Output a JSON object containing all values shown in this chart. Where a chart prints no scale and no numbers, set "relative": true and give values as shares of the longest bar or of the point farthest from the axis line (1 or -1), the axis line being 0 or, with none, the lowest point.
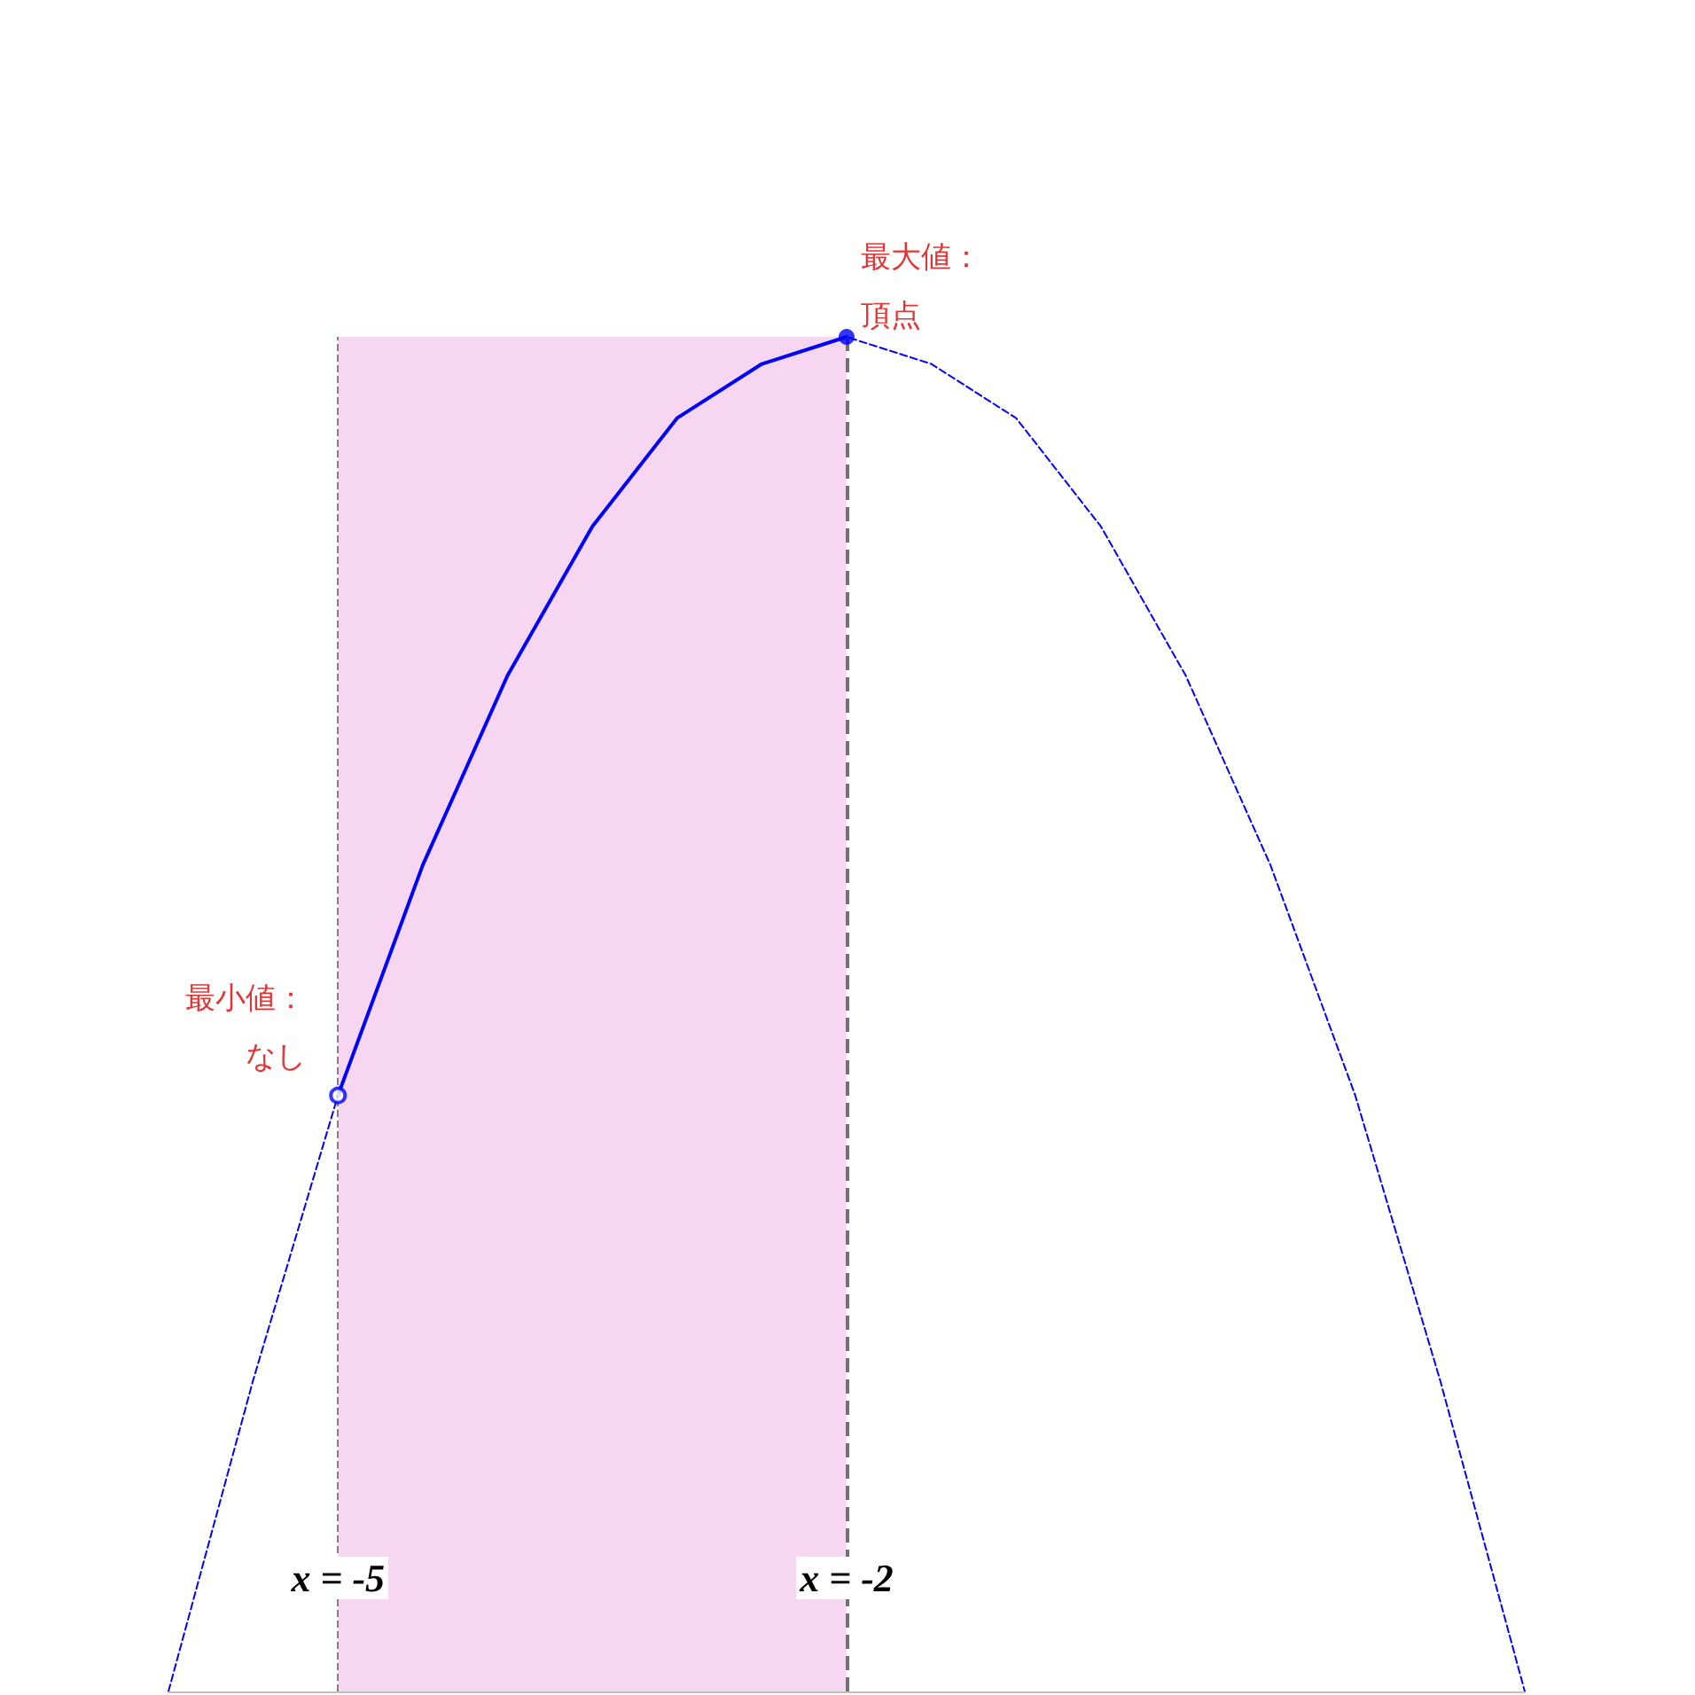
{
  "chart_data": {
    "type": "line",
    "relative": true,
    "tick_labels": "x",
    "grid": false,
    "xlim": [
      -6,
      2
    ],
    "xticks": [
      {
        "value": -5,
        "label": "x = -5"
      },
      {
        "value": -2,
        "label": "x = -2"
      }
    ],
    "series": [
      {
        "line_style": "dashed",
        "color": "#0000ff",
        "x": [
          -6,
          -5.5,
          -5,
          -4.5,
          -4,
          -3.5,
          -3,
          -2.5,
          -2,
          -1.5,
          -1,
          -0.5,
          0,
          0.5,
          1,
          1.5,
          2
        ],
        "values": [
          0,
          0.23,
          0.44,
          0.61,
          0.75,
          0.86,
          0.94,
          0.98,
          1,
          0.98,
          0.94,
          0.86,
          0.75,
          0.61,
          0.44,
          0.23,
          0
        ]
      },
      {
        "line_style": "solid",
        "color": "#0000ff",
        "x": [
          -5,
          -4.5,
          -4,
          -3.5,
          -3,
          -2.5,
          -2
        ],
        "values": [
          0.44,
          0.61,
          0.75,
          0.86,
          0.94,
          0.98,
          1
        ]
      },
      {
        "type": "scatter",
        "marker": "circle",
        "color": "#0000ff",
        "x": [
          -2
        ],
        "values": [
          1
        ]
      }
    ],
    "ref_lines": [
      {
        "axis": "x",
        "value": -5,
        "color": "#808080",
        "line_style": "dashed"
      },
      {
        "axis": "x",
        "value": -2,
        "color": "#707070",
        "line_style": "dashed"
      }
    ],
    "bands": [
      {
        "axis": "x",
        "from": -5,
        "to": -2,
        "color": "#f6d6f0"
      }
    ],
    "annotations": [
      {
        "text": "最大値：頂点",
        "x": -2,
        "y": 1
      },
      {
        "text": "最小値：なし",
        "x": -5,
        "y": 0.44
      }
    ]
  }
}
